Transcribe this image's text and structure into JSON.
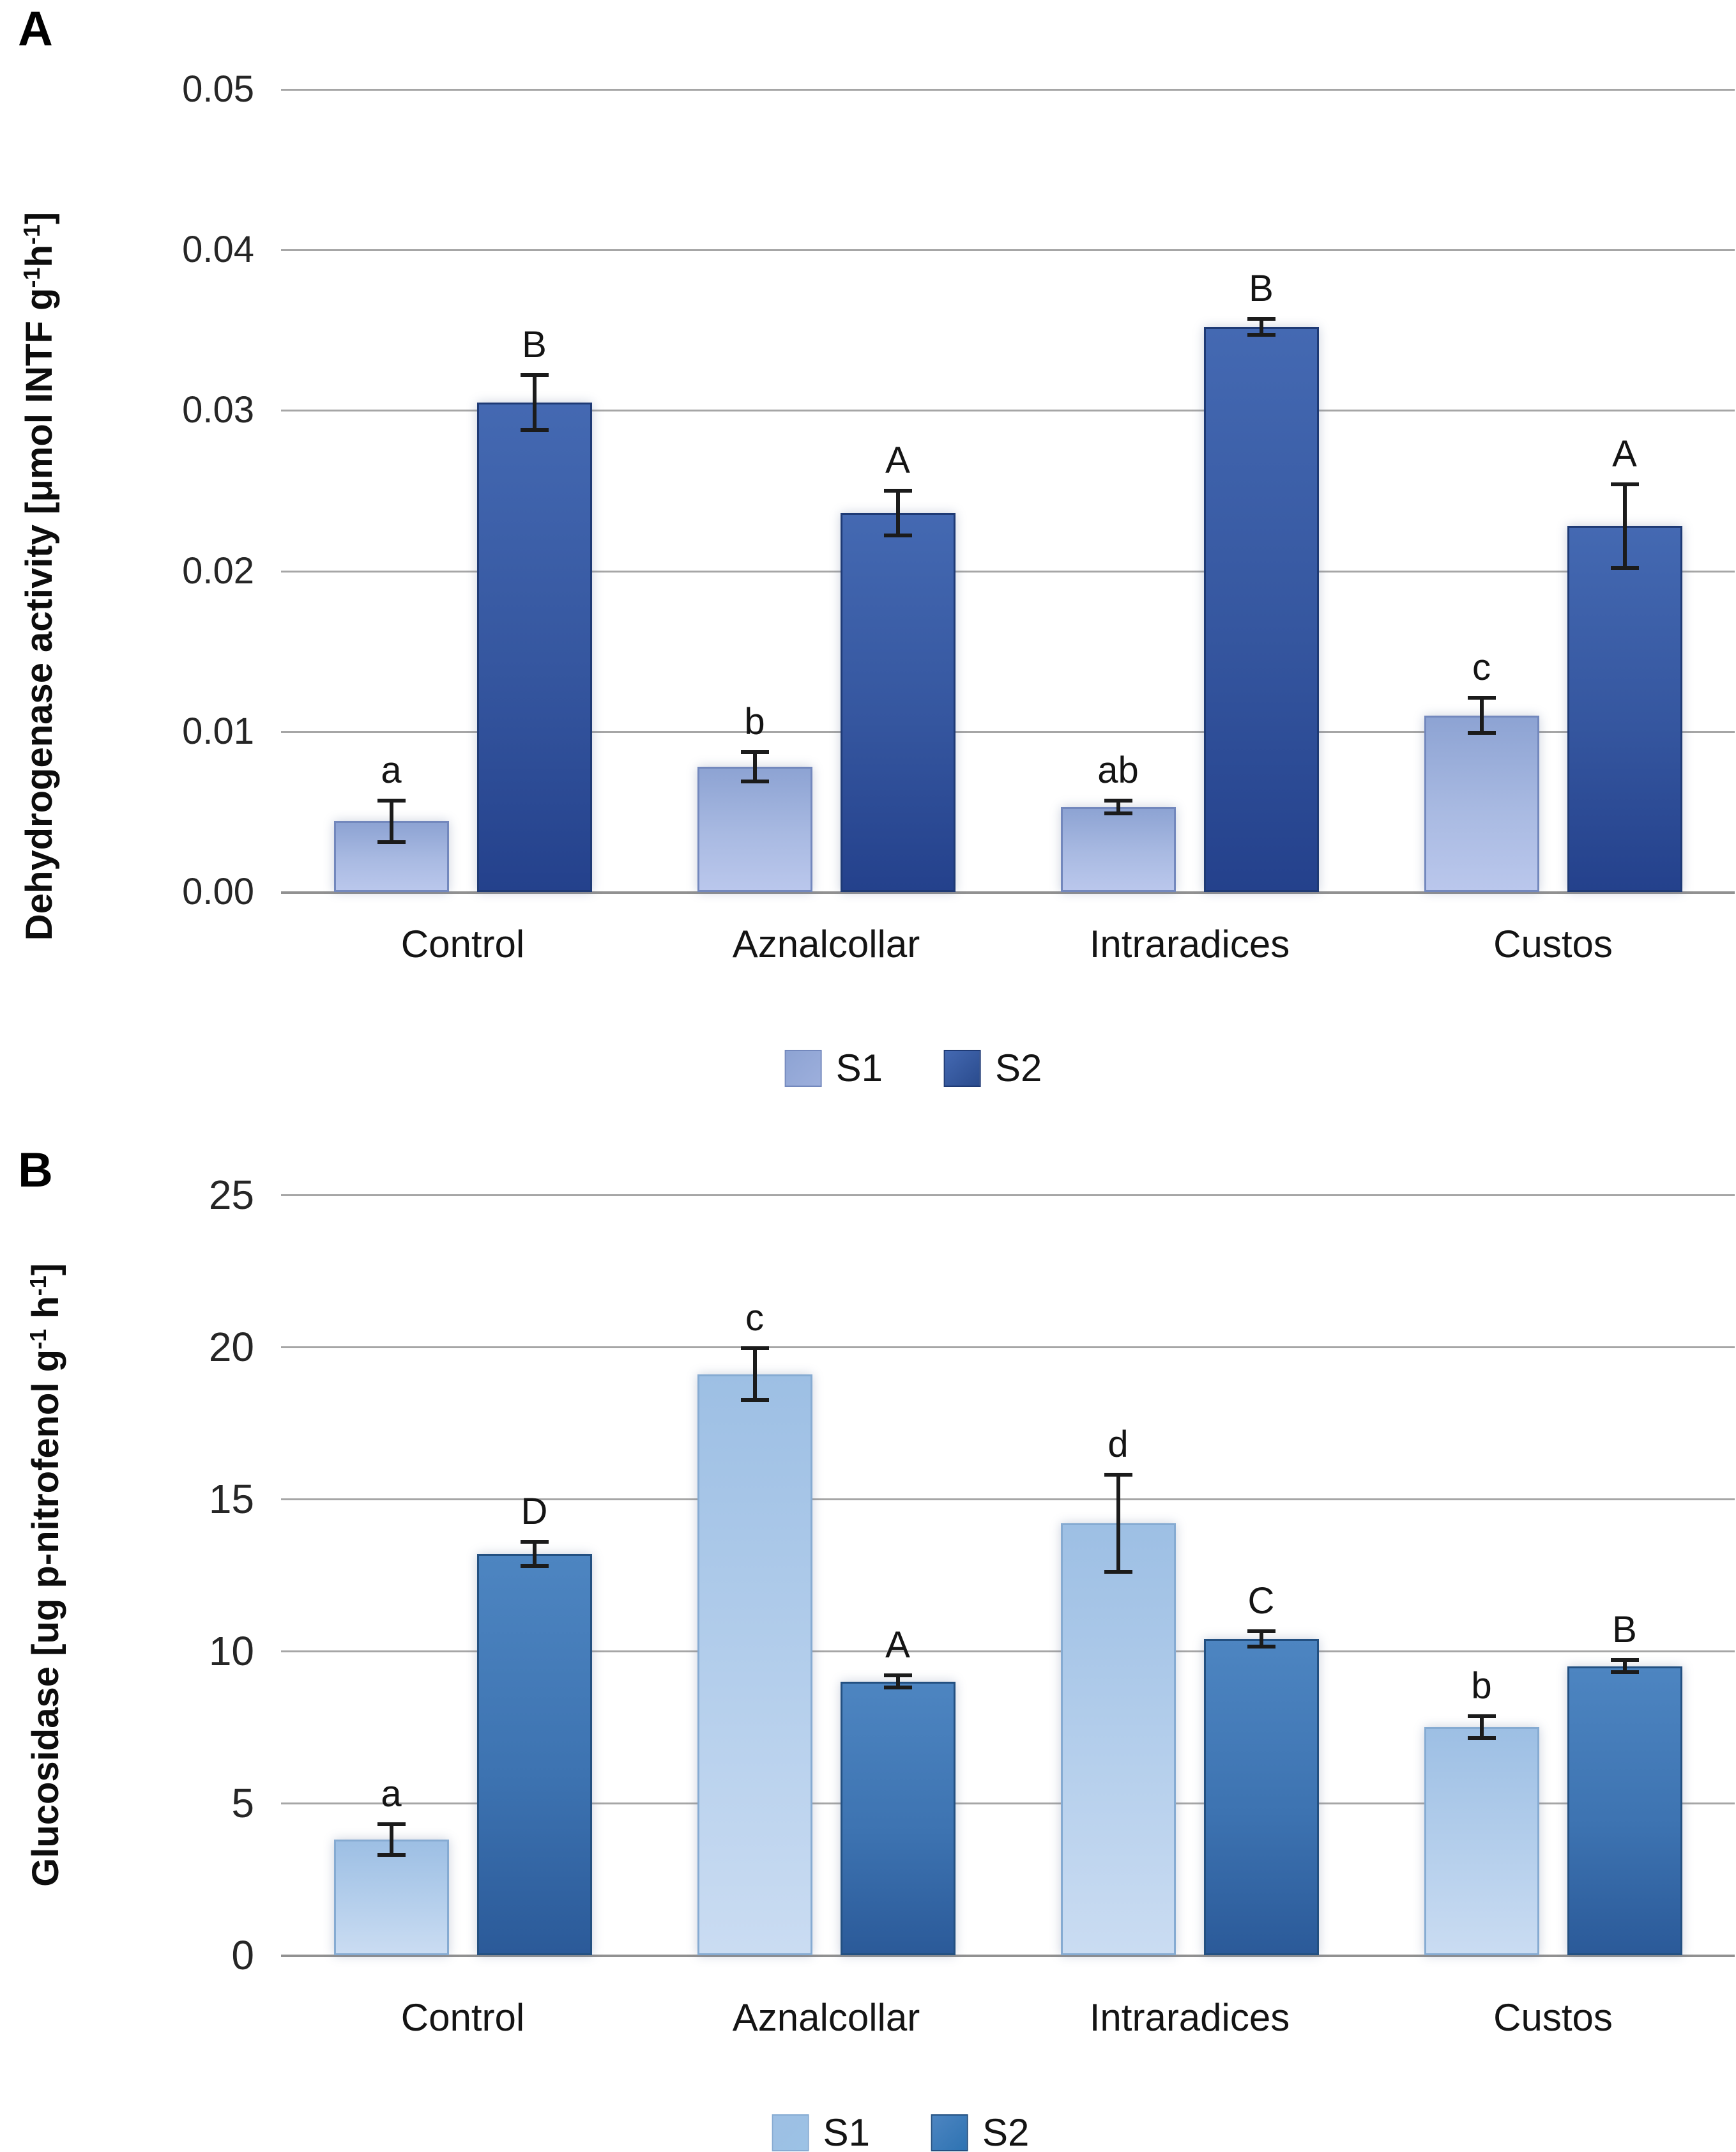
{
  "style": {
    "background": "#ffffff",
    "gridline_color": "#a6a6a6",
    "axis_line_color": "#919191",
    "error_bar_color": "#1b1b1b",
    "text_color": "#141414"
  },
  "chart_data": [
    {
      "id": "A",
      "type": "bar",
      "panel_label": "A",
      "title": "",
      "xlabel": "",
      "ylabel": "Dehydrogenase activity [μmol INTF g-1h-1]",
      "ylabel_parts": [
        [
          "Dehydrogenase activity [μmol INTF g",
          false
        ],
        [
          "-1",
          true
        ],
        [
          "h",
          false
        ],
        [
          "-1",
          true
        ],
        [
          "]",
          false
        ]
      ],
      "categories": [
        "Control",
        "Aznalcollar",
        "Intraradices",
        "Custos"
      ],
      "series": [
        {
          "name": "S1",
          "values": [
            0.0044,
            0.0078,
            0.0053,
            0.011
          ],
          "errors": [
            0.0013,
            0.0009,
            0.0004,
            0.0011
          ],
          "letters": [
            "a",
            "b",
            "ab",
            "c"
          ],
          "colors": {
            "gradient": [
              "#8da3d3",
              "#a9bae2",
              "#bac7ec"
            ],
            "border": "#7388bd",
            "legend": "#9dafdc"
          }
        },
        {
          "name": "S2",
          "values": [
            0.0305,
            0.0236,
            0.0352,
            0.0228
          ],
          "errors": [
            0.0017,
            0.0014,
            0.0005,
            0.0026
          ],
          "letters": [
            "B",
            "A",
            "B",
            "A"
          ],
          "colors": {
            "gradient": [
              "#4469b2",
              "#35569f",
              "#24418c"
            ],
            "border": "#1e3a75",
            "legend": "#2a4b8d"
          }
        }
      ],
      "ylim": [
        0,
        0.05
      ],
      "ytick_step": 0.01,
      "ytick_labels": [
        "0.00",
        "0.01",
        "0.02",
        "0.03",
        "0.04",
        "0.05"
      ],
      "grid": true,
      "legend": [
        "S1",
        "S2"
      ],
      "legend_position": "bottom"
    },
    {
      "id": "B",
      "type": "bar",
      "panel_label": "B",
      "title": "",
      "xlabel": "",
      "ylabel": "Glucosidase [ug p-nitrofenol g-1 h-1]",
      "ylabel_parts": [
        [
          "Glucosidase [ug p-nitrofenol g",
          false
        ],
        [
          "-1",
          true
        ],
        [
          " h",
          false
        ],
        [
          "-1",
          true
        ],
        [
          "]",
          false
        ]
      ],
      "categories": [
        "Control",
        "Aznalcollar",
        "Intraradices",
        "Custos"
      ],
      "series": [
        {
          "name": "S1",
          "values": [
            3.8,
            19.1,
            14.2,
            7.5
          ],
          "errors": [
            0.5,
            0.85,
            1.6,
            0.35
          ],
          "letters": [
            "a",
            "c",
            "d",
            "b"
          ],
          "colors": {
            "gradient": [
              "#9dbfe4",
              "#b5cfec",
              "#cadcf2"
            ],
            "border": "#86abd2",
            "legend": "#9cc2e5"
          }
        },
        {
          "name": "S2",
          "values": [
            13.2,
            9.0,
            10.4,
            9.5
          ],
          "errors": [
            0.4,
            0.2,
            0.25,
            0.2
          ],
          "letters": [
            "D",
            "A",
            "C",
            "B"
          ],
          "colors": {
            "gradient": [
              "#4d85c1",
              "#3d73b1",
              "#2b5a99"
            ],
            "border": "#235081",
            "legend": "#2e73b2"
          }
        }
      ],
      "ylim": [
        0,
        25
      ],
      "ytick_step": 5,
      "ytick_labels": [
        "0",
        "5",
        "10",
        "15",
        "20",
        "25"
      ],
      "grid": true,
      "legend": [
        "S1",
        "S2"
      ],
      "legend_position": "bottom"
    }
  ]
}
